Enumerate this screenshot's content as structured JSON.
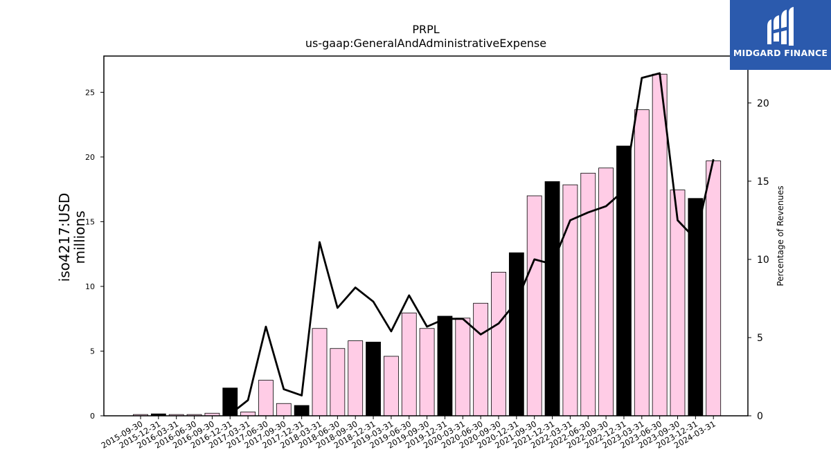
{
  "chart_data": {
    "type": "bar",
    "title": "PRPL",
    "subtitle": "us-gaap:GeneralAndAdministrativeExpense",
    "ylabel": "iso4217:USD\nmillions",
    "y2label": "Percentage of Revenues",
    "ylim": [
      0,
      27.8
    ],
    "y2lim": [
      0,
      23.0
    ],
    "yticks": [
      0,
      5,
      10,
      15,
      20,
      25
    ],
    "y2ticks": [
      0,
      5,
      10,
      15,
      20
    ],
    "categories": [
      "2015-09-30",
      "2015-12-31",
      "2016-03-31",
      "2016-06-30",
      "2016-09-30",
      "2016-12-31",
      "2017-03-31",
      "2017-06-30",
      "2017-09-30",
      "2017-12-31",
      "2018-03-31",
      "2018-06-30",
      "2018-09-30",
      "2018-12-31",
      "2019-03-31",
      "2019-06-30",
      "2019-09-30",
      "2019-12-31",
      "2020-03-31",
      "2020-06-30",
      "2020-09-30",
      "2020-12-31",
      "2021-09-30",
      "2021-12-31",
      "2022-03-31",
      "2022-06-30",
      "2022-09-30",
      "2022-12-31",
      "2023-03-31",
      "2023-06-30",
      "2023-09-30",
      "2023-12-31",
      "2024-03-31"
    ],
    "series": [
      {
        "values": [
          0.1,
          0.15,
          0.1,
          0.1,
          0.2,
          2.15,
          0.3,
          2.75,
          0.95,
          0.8,
          6.75,
          5.2,
          5.8,
          5.7,
          4.6,
          7.95,
          6.75,
          7.7,
          7.55,
          8.7,
          11.1,
          12.6,
          17.0,
          18.1,
          17.85,
          18.75,
          19.15,
          20.85,
          23.65,
          26.4,
          17.45,
          16.8,
          19.7
        ],
        "annual": [
          false,
          true,
          false,
          false,
          false,
          true,
          false,
          false,
          false,
          true,
          false,
          false,
          false,
          true,
          false,
          false,
          false,
          true,
          false,
          false,
          false,
          true,
          false,
          true,
          false,
          false,
          false,
          true,
          false,
          false,
          false,
          true,
          false
        ]
      },
      {
        "axis": "right",
        "type": "line",
        "values": [
          null,
          null,
          null,
          null,
          null,
          0.1,
          1.0,
          5.7,
          1.7,
          1.3,
          11.1,
          6.9,
          8.2,
          7.3,
          5.4,
          7.7,
          5.7,
          6.2,
          6.2,
          5.2,
          5.9,
          7.3,
          10.0,
          9.7,
          12.5,
          13.0,
          13.4,
          14.4,
          21.6,
          21.9,
          12.5,
          11.3,
          16.4
        ]
      }
    ],
    "colors": {
      "quarter_bar": "#ffcce6",
      "annual_bar": "#000000",
      "bar_edge": "#000000",
      "line": "#000000"
    },
    "legend": "none",
    "grid": false
  },
  "logo": {
    "text": "MIDGARD FINANCE",
    "icon": "midgard-logo-icon",
    "bg": "#2b5aad"
  }
}
